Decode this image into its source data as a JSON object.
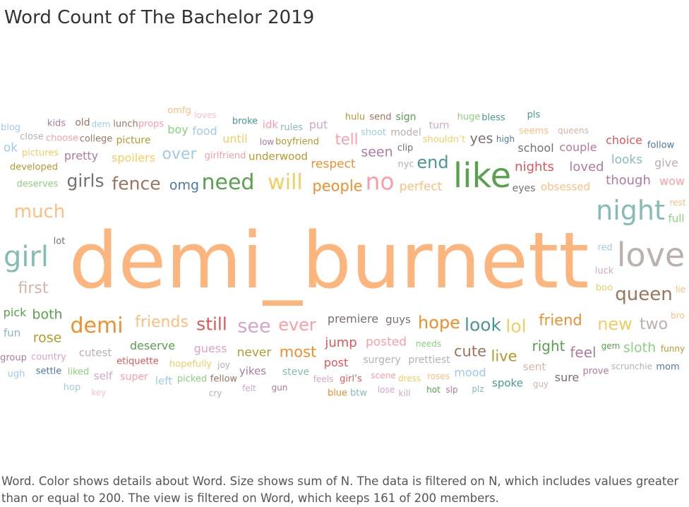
{
  "title": "Word Count of The Bachelor 2019",
  "caption": "Word.  Color shows details about Word.  Size shows sum of N. The data is filtered on N, which includes values greater than or equal to 200. The view is filtered on Word, which keeps 161 of 200 members.",
  "chart_data": {
    "type": "word_cloud",
    "title": "Word Count of The Bachelor 2019",
    "size_measure": "sum of N",
    "color_measure": "Word",
    "filter": "N >= 200",
    "words_shown": 161,
    "words_total": 200,
    "words": [
      {
        "word": "demi_burnett",
        "size": 110,
        "color": "#fdb57e"
      },
      {
        "word": "like",
        "size": 48,
        "color": "#59a14f"
      },
      {
        "word": "love",
        "size": 46,
        "color": "#bab0ac"
      },
      {
        "word": "night",
        "size": 38,
        "color": "#86bcb6"
      },
      {
        "word": "girl",
        "size": 40,
        "color": "#86bcb6"
      },
      {
        "word": "no",
        "size": 33,
        "color": "#ff9da7"
      },
      {
        "word": "need",
        "size": 30,
        "color": "#59a14f"
      },
      {
        "word": "will",
        "size": 30,
        "color": "#f1ce63"
      },
      {
        "word": "demi",
        "size": 30,
        "color": "#f28e2b"
      },
      {
        "word": "queen",
        "size": 26,
        "color": "#9c755f"
      },
      {
        "word": "much",
        "size": 26,
        "color": "#ffbe7d"
      },
      {
        "word": "girls",
        "size": 25,
        "color": "#79706e"
      },
      {
        "word": "fence",
        "size": 25,
        "color": "#9c755f"
      },
      {
        "word": "see",
        "size": 27,
        "color": "#d4a6c8"
      },
      {
        "word": "look",
        "size": 25,
        "color": "#499894"
      },
      {
        "word": "still",
        "size": 25,
        "color": "#e15759"
      },
      {
        "word": "end",
        "size": 24,
        "color": "#499894"
      },
      {
        "word": "lol",
        "size": 25,
        "color": "#f1ce63"
      },
      {
        "word": "hope",
        "size": 24,
        "color": "#f28e2b"
      },
      {
        "word": "ever",
        "size": 24,
        "color": "#ff9da7"
      },
      {
        "word": "new",
        "size": 24,
        "color": "#f1ce63"
      },
      {
        "word": "first",
        "size": 22,
        "color": "#d7b5a6"
      },
      {
        "word": "friends",
        "size": 22,
        "color": "#ffbe7d"
      },
      {
        "word": "over",
        "size": 22,
        "color": "#a0cbe8"
      },
      {
        "word": "people",
        "size": 21,
        "color": "#f28e2b"
      },
      {
        "word": "tell",
        "size": 21,
        "color": "#ff9da7"
      },
      {
        "word": "two",
        "size": 22,
        "color": "#bab0ac"
      },
      {
        "word": "friend",
        "size": 21,
        "color": "#f28e2b"
      },
      {
        "word": "most",
        "size": 21,
        "color": "#f28e2b"
      },
      {
        "word": "cute",
        "size": 21,
        "color": "#9c755f"
      },
      {
        "word": "live",
        "size": 21,
        "color": "#b6992d"
      },
      {
        "word": "right",
        "size": 20,
        "color": "#59a14f"
      },
      {
        "word": "feel",
        "size": 20,
        "color": "#b07aa1"
      },
      {
        "word": "sloth",
        "size": 19,
        "color": "#8cd17d"
      },
      {
        "word": "omg",
        "size": 19,
        "color": "#4e79a7"
      },
      {
        "word": "both",
        "size": 19,
        "color": "#59a14f"
      },
      {
        "word": "rose",
        "size": 19,
        "color": "#b6992d"
      },
      {
        "word": "seen",
        "size": 19,
        "color": "#b07aa1"
      },
      {
        "word": "yes",
        "size": 19,
        "color": "#79706e"
      },
      {
        "word": "nights",
        "size": 18,
        "color": "#e15759"
      },
      {
        "word": "loved",
        "size": 18,
        "color": "#b07aa1"
      },
      {
        "word": "though",
        "size": 18,
        "color": "#b07aa1"
      },
      {
        "word": "respect",
        "size": 17,
        "color": "#f28e2b"
      },
      {
        "word": "perfect",
        "size": 17,
        "color": "#ffbe7d"
      },
      {
        "word": "pretty",
        "size": 16,
        "color": "#b07aa1"
      },
      {
        "word": "spoilers",
        "size": 16,
        "color": "#f1ce63"
      },
      {
        "word": "looks",
        "size": 17,
        "color": "#86bcb6"
      },
      {
        "word": "give",
        "size": 16,
        "color": "#bab0ac"
      },
      {
        "word": "wow",
        "size": 16,
        "color": "#ff9da7"
      },
      {
        "word": "full",
        "size": 15,
        "color": "#8cd17d"
      },
      {
        "word": "choice",
        "size": 16,
        "color": "#e15759"
      },
      {
        "word": "couple",
        "size": 16,
        "color": "#b07aa1"
      },
      {
        "word": "school",
        "size": 16,
        "color": "#79706e"
      },
      {
        "word": "ok",
        "size": 17,
        "color": "#a0cbe8"
      },
      {
        "word": "until",
        "size": 16,
        "color": "#f1ce63"
      },
      {
        "word": "boy",
        "size": 16,
        "color": "#8cd17d"
      },
      {
        "word": "food",
        "size": 16,
        "color": "#a0cbe8"
      },
      {
        "word": "picture",
        "size": 14,
        "color": "#b6992d"
      },
      {
        "word": "put",
        "size": 16,
        "color": "#d4a6c8"
      },
      {
        "word": "idk",
        "size": 15,
        "color": "#ff9da7"
      },
      {
        "word": "pick",
        "size": 16,
        "color": "#59a14f"
      },
      {
        "word": "fun",
        "size": 15,
        "color": "#86bcb6"
      },
      {
        "word": "deserve",
        "size": 16,
        "color": "#59a14f"
      },
      {
        "word": "guess",
        "size": 16,
        "color": "#d4a6c8"
      },
      {
        "word": "never",
        "size": 17,
        "color": "#b6992d"
      },
      {
        "word": "jump",
        "size": 18,
        "color": "#e15759"
      },
      {
        "word": "posted",
        "size": 17,
        "color": "#ff9da7"
      },
      {
        "word": "premiere",
        "size": 16,
        "color": "#79706e"
      },
      {
        "word": "guys",
        "size": 15,
        "color": "#79706e"
      },
      {
        "word": "cutest",
        "size": 15,
        "color": "#bab0ac"
      },
      {
        "word": "post",
        "size": 16,
        "color": "#e15759"
      },
      {
        "word": "surgery",
        "size": 14,
        "color": "#bab0ac"
      },
      {
        "word": "prettiest",
        "size": 14,
        "color": "#bab0ac"
      },
      {
        "word": "mood",
        "size": 16,
        "color": "#a0cbe8"
      },
      {
        "word": "spoke",
        "size": 15,
        "color": "#499894"
      },
      {
        "word": "sure",
        "size": 16,
        "color": "#79706e"
      },
      {
        "word": "sent",
        "size": 15,
        "color": "#d7b5a6"
      },
      {
        "word": "yikes",
        "size": 15,
        "color": "#b07aa1"
      },
      {
        "word": "left",
        "size": 15,
        "color": "#a0cbe8"
      },
      {
        "word": "self",
        "size": 15,
        "color": "#d4a6c8"
      },
      {
        "word": "super",
        "size": 14,
        "color": "#ff9da7"
      },
      {
        "word": "steve",
        "size": 14,
        "color": "#86bcb6"
      },
      {
        "word": "underwood",
        "size": 15,
        "color": "#b6992d"
      },
      {
        "word": "seems",
        "size": 13,
        "color": "#ffbe7d"
      },
      {
        "word": "eyes",
        "size": 14,
        "color": "#79706e"
      },
      {
        "word": "obsessed",
        "size": 15,
        "color": "#ffbe7d"
      },
      {
        "word": "sign",
        "size": 14,
        "color": "#59a14f"
      },
      {
        "word": "model",
        "size": 14,
        "color": "#bab0ac"
      },
      {
        "word": "clip",
        "size": 13,
        "color": "#79706e"
      },
      {
        "word": "turn",
        "size": 14,
        "color": "#d4a6c8"
      },
      {
        "word": "developed",
        "size": 13,
        "color": "#b6992d"
      },
      {
        "word": "deserves",
        "size": 13,
        "color": "#8cd17d"
      },
      {
        "word": "pictures",
        "size": 13,
        "color": "#f1ce63"
      },
      {
        "word": "college",
        "size": 13,
        "color": "#9c755f"
      },
      {
        "word": "choose",
        "size": 13,
        "color": "#ff9da7"
      },
      {
        "word": "close",
        "size": 13,
        "color": "#bab0ac"
      },
      {
        "word": "blog",
        "size": 13,
        "color": "#a0cbe8"
      },
      {
        "word": "kids",
        "size": 13,
        "color": "#b07aa1"
      },
      {
        "word": "old",
        "size": 14,
        "color": "#9c755f"
      },
      {
        "word": "dem",
        "size": 12,
        "color": "#a0cbe8"
      },
      {
        "word": "lunch",
        "size": 13,
        "color": "#9c755f"
      },
      {
        "word": "props",
        "size": 13,
        "color": "#ff9da7"
      },
      {
        "word": "omfg",
        "size": 13,
        "color": "#ffbe7d"
      },
      {
        "word": "loves",
        "size": 12,
        "color": "#fabfd2"
      },
      {
        "word": "broke",
        "size": 13,
        "color": "#499894"
      },
      {
        "word": "rules",
        "size": 13,
        "color": "#86bcb6"
      },
      {
        "word": "low",
        "size": 12,
        "color": "#b07aa1"
      },
      {
        "word": "boyfriend",
        "size": 13,
        "color": "#b6992d"
      },
      {
        "word": "girlfriend",
        "size": 13,
        "color": "#ff9da7"
      },
      {
        "word": "hulu",
        "size": 13,
        "color": "#b6992d"
      },
      {
        "word": "send",
        "size": 13,
        "color": "#9c755f"
      },
      {
        "word": "shoot",
        "size": 13,
        "color": "#a0cbe8"
      },
      {
        "word": "shouldn’t",
        "size": 13,
        "color": "#f1ce63"
      },
      {
        "word": "nyc",
        "size": 13,
        "color": "#bab0ac"
      },
      {
        "word": "huge",
        "size": 13,
        "color": "#8cd17d"
      },
      {
        "word": "bless",
        "size": 13,
        "color": "#499894"
      },
      {
        "word": "high",
        "size": 12,
        "color": "#4e79a7"
      },
      {
        "word": "pls",
        "size": 13,
        "color": "#499894"
      },
      {
        "word": "queens",
        "size": 12,
        "color": "#d7b5a6"
      },
      {
        "word": "follow",
        "size": 13,
        "color": "#4e79a7"
      },
      {
        "word": "rest",
        "size": 12,
        "color": "#ffbe7d"
      },
      {
        "word": "lot",
        "size": 13,
        "color": "#79706e"
      },
      {
        "word": "red",
        "size": 13,
        "color": "#a0cbe8"
      },
      {
        "word": "luck",
        "size": 13,
        "color": "#d4a6c8"
      },
      {
        "word": "boo",
        "size": 13,
        "color": "#f1ce63"
      },
      {
        "word": "lie",
        "size": 12,
        "color": "#ffbe7d"
      },
      {
        "word": "bro",
        "size": 12,
        "color": "#ffbe7d"
      },
      {
        "word": "funny",
        "size": 12,
        "color": "#b6992d"
      },
      {
        "word": "gem",
        "size": 12,
        "color": "#59a14f"
      },
      {
        "word": "prove",
        "size": 13,
        "color": "#b07aa1"
      },
      {
        "word": "scrunchie",
        "size": 12,
        "color": "#bab0ac"
      },
      {
        "word": "mom",
        "size": 13,
        "color": "#4e79a7"
      },
      {
        "word": "group",
        "size": 13,
        "color": "#b07aa1"
      },
      {
        "word": "country",
        "size": 13,
        "color": "#d4a6c8"
      },
      {
        "word": "ugh",
        "size": 13,
        "color": "#a0cbe8"
      },
      {
        "word": "settle",
        "size": 13,
        "color": "#4e79a7"
      },
      {
        "word": "liked",
        "size": 13,
        "color": "#8cd17d"
      },
      {
        "word": "hop",
        "size": 13,
        "color": "#a0cbe8"
      },
      {
        "word": "key",
        "size": 12,
        "color": "#fabfd2"
      },
      {
        "word": "etiquette",
        "size": 13,
        "color": "#e15759"
      },
      {
        "word": "hopefully",
        "size": 13,
        "color": "#f1ce63"
      },
      {
        "word": "joy",
        "size": 12,
        "color": "#bab0ac"
      },
      {
        "word": "picked",
        "size": 13,
        "color": "#8cd17d"
      },
      {
        "word": "fellow",
        "size": 13,
        "color": "#9c755f"
      },
      {
        "word": "cry",
        "size": 12,
        "color": "#bab0ac"
      },
      {
        "word": "felt",
        "size": 12,
        "color": "#d4a6c8"
      },
      {
        "word": "gun",
        "size": 12,
        "color": "#b07aa1"
      },
      {
        "word": "feels",
        "size": 12,
        "color": "#d4a6c8"
      },
      {
        "word": "girl’s",
        "size": 13,
        "color": "#e15759"
      },
      {
        "word": "blue",
        "size": 13,
        "color": "#f28e2b"
      },
      {
        "word": "btw",
        "size": 13,
        "color": "#86bcb6"
      },
      {
        "word": "scene",
        "size": 12,
        "color": "#ff9da7"
      },
      {
        "word": "dress",
        "size": 12,
        "color": "#f1ce63"
      },
      {
        "word": "lose",
        "size": 12,
        "color": "#d4a6c8"
      },
      {
        "word": "roses",
        "size": 12,
        "color": "#ffbe7d"
      },
      {
        "word": "kill",
        "size": 12,
        "color": "#d4a6c8"
      },
      {
        "word": "hot",
        "size": 12,
        "color": "#59a14f"
      },
      {
        "word": "slp",
        "size": 12,
        "color": "#b07aa1"
      },
      {
        "word": "plz",
        "size": 12,
        "color": "#86bcb6"
      },
      {
        "word": "guy",
        "size": 12,
        "color": "#d7b5a6"
      },
      {
        "word": "needs",
        "size": 12,
        "color": "#8cd17d"
      }
    ]
  }
}
